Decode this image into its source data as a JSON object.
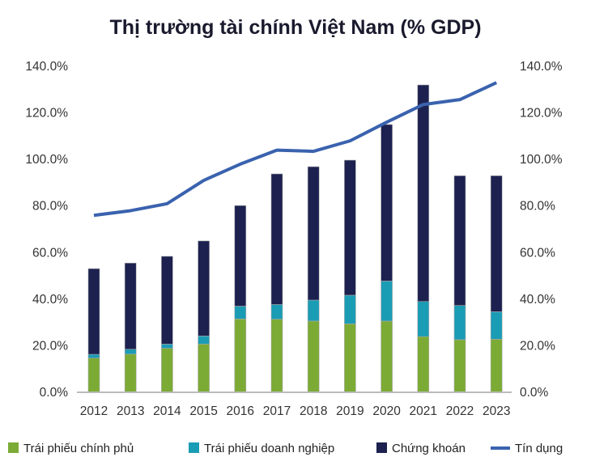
{
  "chart_data": {
    "type": "bar",
    "stacked": true,
    "title": "Thị trường tài chính Việt Nam (% GDP)",
    "categories": [
      "2012",
      "2013",
      "2014",
      "2015",
      "2016",
      "2017",
      "2018",
      "2019",
      "2020",
      "2021",
      "2022",
      "2023"
    ],
    "ylim": [
      0,
      140
    ],
    "y_ticks": [
      "0.0%",
      "20.0%",
      "40.0%",
      "60.0%",
      "80.0%",
      "100.0%",
      "120.0%",
      "140.0%"
    ],
    "y2_ticks": [
      "0.0%",
      "20.0%",
      "40.0%",
      "60.0%",
      "80.0%",
      "100.0%",
      "120.0%",
      "140.0%"
    ],
    "legend_position": "bottom",
    "series": [
      {
        "name": "Trái phiếu chính phủ",
        "type": "bar",
        "color": "#7cab35",
        "values": [
          14.7,
          16.4,
          18.9,
          20.7,
          31.5,
          31.4,
          30.6,
          29.4,
          30.6,
          23.9,
          22.6,
          22.8
        ]
      },
      {
        "name": "Trái phiếu doanh nghiệp",
        "type": "bar",
        "color": "#1b9cb5",
        "values": [
          1.6,
          2.1,
          1.8,
          3.5,
          5.5,
          6.3,
          9.0,
          12.3,
          17.2,
          15.1,
          14.7,
          11.8
        ]
      },
      {
        "name": "Chứng khoán",
        "type": "bar",
        "color": "#1c2150",
        "values": [
          36.8,
          37.0,
          37.7,
          40.8,
          43.2,
          56.1,
          57.3,
          58.0,
          67.2,
          93.0,
          55.7,
          58.4
        ]
      },
      {
        "name": "Tín dụng",
        "type": "line",
        "color": "#3a62ae",
        "values": [
          76,
          78,
          81,
          91,
          98,
          104,
          103.5,
          108,
          116,
          123.6,
          125.7,
          133
        ]
      }
    ]
  }
}
